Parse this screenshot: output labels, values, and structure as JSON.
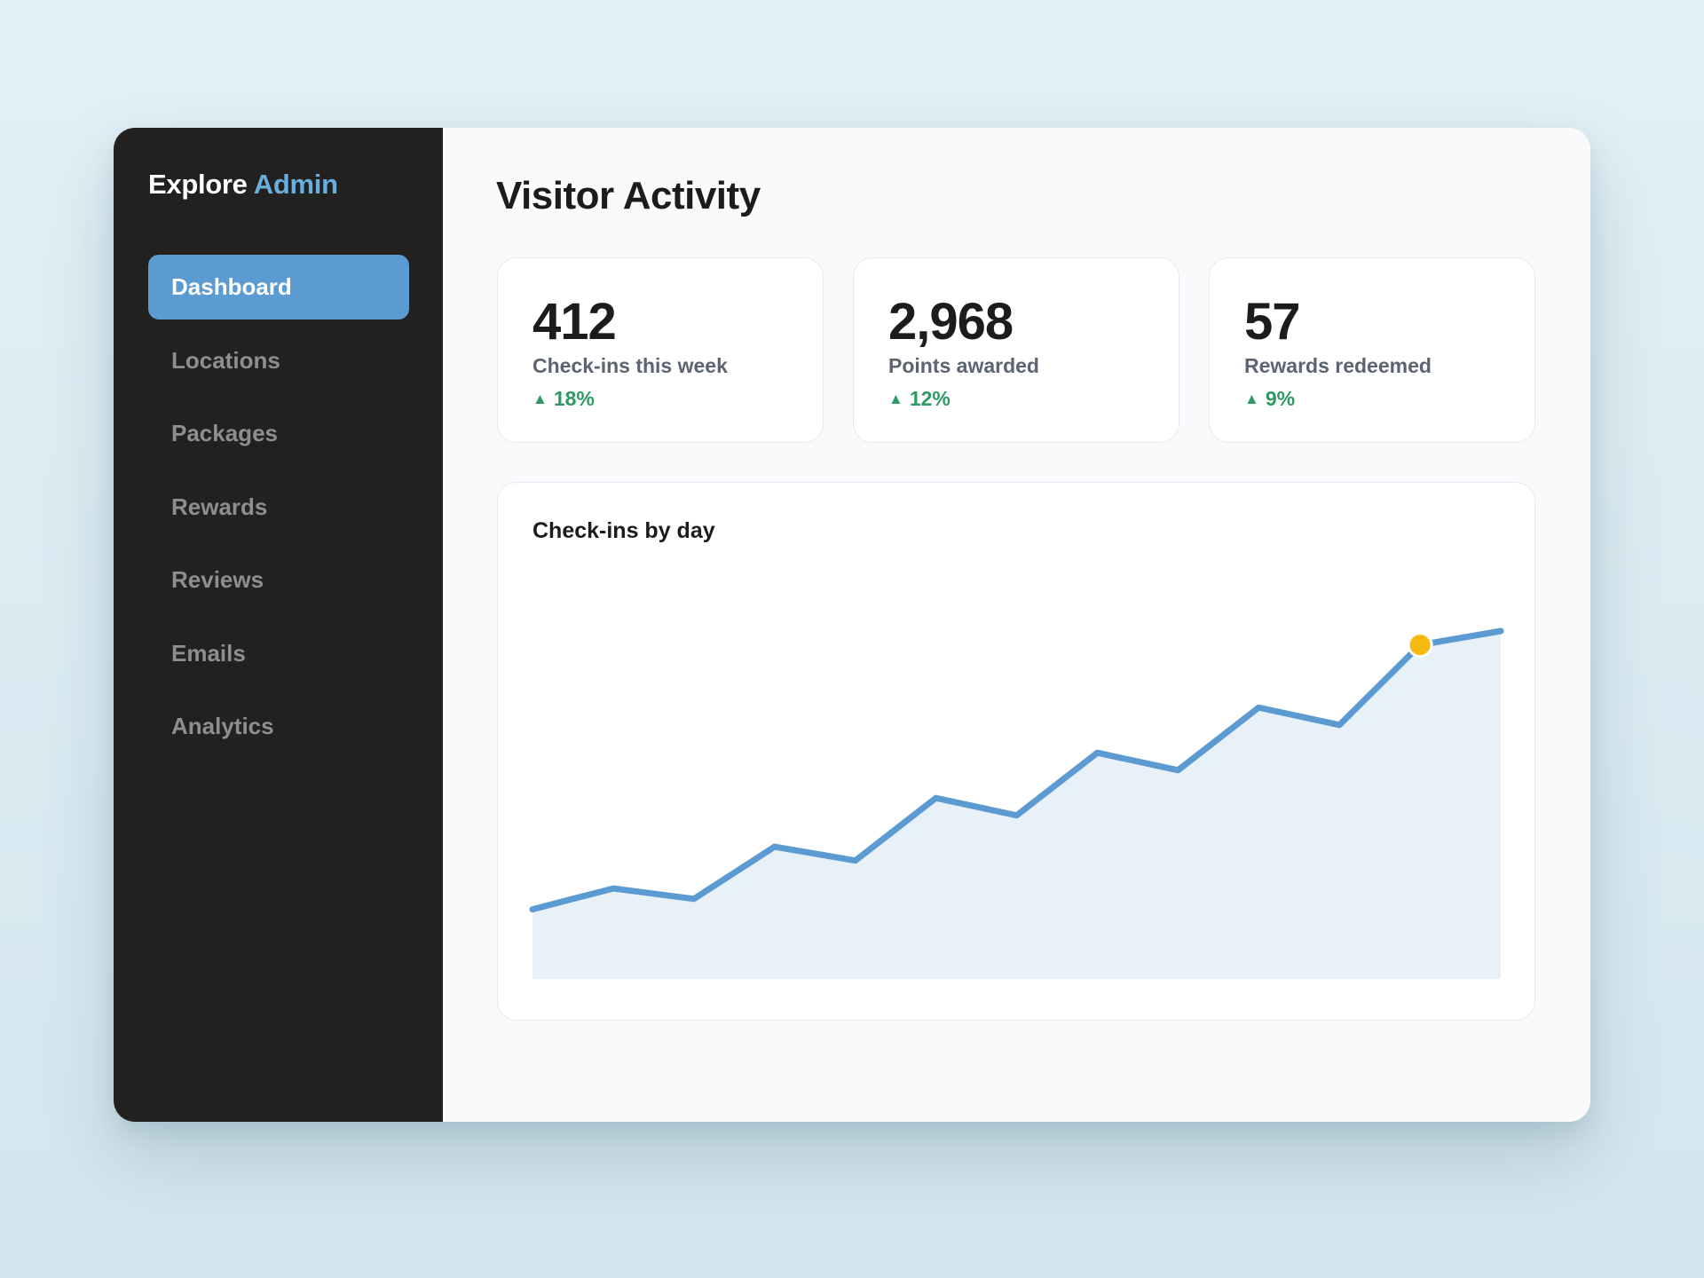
{
  "brand": {
    "name": "Explore",
    "accent": "Admin"
  },
  "nav": {
    "items": [
      {
        "label": "Dashboard",
        "active": true
      },
      {
        "label": "Locations",
        "active": false
      },
      {
        "label": "Packages",
        "active": false
      },
      {
        "label": "Rewards",
        "active": false
      },
      {
        "label": "Reviews",
        "active": false
      },
      {
        "label": "Emails",
        "active": false
      },
      {
        "label": "Analytics",
        "active": false
      }
    ]
  },
  "page": {
    "title": "Visitor Activity"
  },
  "stats": [
    {
      "value": "412",
      "label": "Check-ins this week",
      "delta_arrow": "▲",
      "delta": "18%"
    },
    {
      "value": "2,968",
      "label": "Points awarded",
      "delta_arrow": "▲",
      "delta": "12%"
    },
    {
      "value": "57",
      "label": "Rewards redeemed",
      "delta_arrow": "▲",
      "delta": "9%"
    }
  ],
  "colors": {
    "accent": "#5b9bd1",
    "sidebar": "#222120",
    "positive": "#2e9a62",
    "highlight": "#f5b90f",
    "area_fill": "#e9f1f8"
  },
  "chart_data": {
    "type": "area",
    "title": "Check-ins by day",
    "xlabel": "",
    "ylabel": "",
    "x": [
      1,
      2,
      3,
      4,
      5,
      6,
      7,
      8,
      9,
      10,
      11,
      12,
      13
    ],
    "values": [
      20,
      26,
      23,
      38,
      34,
      52,
      47,
      65,
      60,
      78,
      73,
      96,
      100
    ],
    "ylim": [
      0,
      100
    ],
    "highlight_index": 11,
    "grid": false,
    "legend": "none"
  }
}
